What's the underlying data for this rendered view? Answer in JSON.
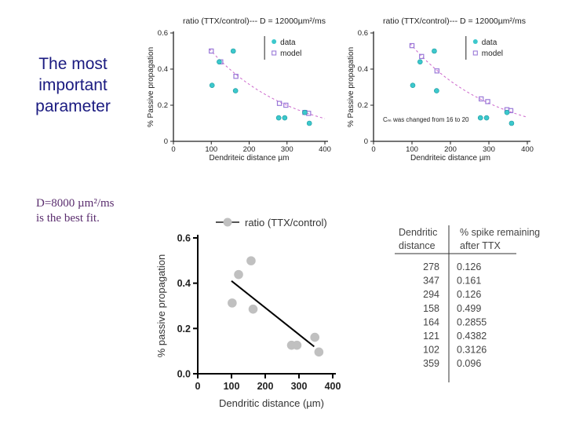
{
  "side_title": "The most important parameter",
  "side_note_line1": "D=8000 µm²/ms",
  "side_note_line2": "is the best fit.",
  "colors": {
    "data": "#3cc8cc",
    "model": "#9a7ad8",
    "bw_dot": "#c0c0c0",
    "title": "#1a1a80"
  },
  "chart_data": [
    {
      "id": "top-left",
      "type": "scatter",
      "title": "ratio (TTX/control)--- D = 12000µm²/ms",
      "xlabel": "Dendriteic distance µm",
      "ylabel": "% Passive propagation",
      "xlim": [
        0,
        400
      ],
      "ylim": [
        0,
        0.6
      ],
      "xticks": [
        "0",
        "100",
        "200",
        "300",
        "400"
      ],
      "yticks": [
        "0",
        "0.2",
        "0.4",
        "0.6"
      ],
      "legend": [
        "data",
        "model"
      ],
      "data": [
        [
          102,
          0.31
        ],
        [
          121,
          0.44
        ],
        [
          158,
          0.5
        ],
        [
          164,
          0.28
        ],
        [
          278,
          0.13
        ],
        [
          294,
          0.13
        ],
        [
          347,
          0.16
        ],
        [
          359,
          0.1
        ]
      ],
      "model": [
        [
          100,
          0.5
        ],
        [
          125,
          0.44
        ],
        [
          165,
          0.36
        ],
        [
          280,
          0.21
        ],
        [
          297,
          0.2
        ],
        [
          347,
          0.16
        ],
        [
          357,
          0.155
        ]
      ],
      "annotation": ""
    },
    {
      "id": "top-right",
      "type": "scatter",
      "title": "ratio (TTX/control)--- D = 12000µm²/ms",
      "xlabel": "Dendriteic distance µm",
      "ylabel": "% Passive propagation",
      "xlim": [
        0,
        400
      ],
      "ylim": [
        0,
        0.6
      ],
      "xticks": [
        "0",
        "100",
        "200",
        "300",
        "400"
      ],
      "yticks": [
        "0",
        "0.2",
        "0.4",
        "0.6"
      ],
      "legend": [
        "data",
        "model"
      ],
      "data": [
        [
          102,
          0.31
        ],
        [
          121,
          0.44
        ],
        [
          158,
          0.5
        ],
        [
          164,
          0.28
        ],
        [
          278,
          0.13
        ],
        [
          294,
          0.13
        ],
        [
          347,
          0.16
        ],
        [
          359,
          0.1
        ]
      ],
      "model": [
        [
          100,
          0.53
        ],
        [
          125,
          0.47
        ],
        [
          165,
          0.39
        ],
        [
          280,
          0.235
        ],
        [
          297,
          0.22
        ],
        [
          347,
          0.175
        ],
        [
          357,
          0.17
        ]
      ],
      "annotation": "Cₘ was changed from 16 to 20"
    },
    {
      "id": "bottom",
      "type": "scatter",
      "title": "ratio (TTX/control)",
      "xlabel": "Dendritic distance (µm)",
      "ylabel": "% passive propagation",
      "xlim": [
        0,
        400
      ],
      "ylim": [
        0,
        0.6
      ],
      "xticks": [
        "0",
        "100",
        "200",
        "300",
        "400"
      ],
      "yticks": [
        "0.0",
        "0.2",
        "0.4",
        "0.6"
      ],
      "legend": [
        "ratio (TTX/control)"
      ],
      "data": [
        [
          102,
          0.3126
        ],
        [
          121,
          0.4382
        ],
        [
          158,
          0.499
        ],
        [
          164,
          0.2855
        ],
        [
          278,
          0.126
        ],
        [
          294,
          0.126
        ],
        [
          347,
          0.161
        ],
        [
          359,
          0.096
        ]
      ],
      "fit": [
        [
          100,
          0.41
        ],
        [
          345,
          0.12
        ]
      ]
    },
    {
      "id": "table",
      "type": "table",
      "columns": [
        "Dendritic distance",
        "% spike remaining after TTX"
      ],
      "rows": [
        [
          "278",
          "0.126"
        ],
        [
          "347",
          "0.161"
        ],
        [
          "294",
          "0.126"
        ],
        [
          "158",
          "0.499"
        ],
        [
          "164",
          "0.2855"
        ],
        [
          "121",
          "0.4382"
        ],
        [
          "102",
          "0.3126"
        ],
        [
          "359",
          "0.096"
        ]
      ]
    }
  ]
}
